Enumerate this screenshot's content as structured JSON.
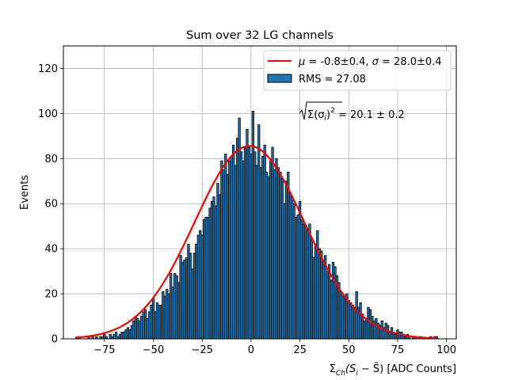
{
  "chart_data": {
    "type": "bar",
    "title": "Sum over 32 LG channels",
    "xlabel": "Σ_Ch(S_i − S̄) [ADC Counts]",
    "ylabel": "Events",
    "xlim": [
      -96,
      105
    ],
    "ylim": [
      0,
      130
    ],
    "x_ticks": [
      -75,
      -50,
      -25,
      0,
      25,
      50,
      75,
      100
    ],
    "y_ticks": [
      0,
      20,
      40,
      60,
      80,
      100,
      120
    ],
    "grid": true,
    "legend_position": "top-right",
    "histogram": {
      "name": "RMS = 27.08",
      "bin_width": 1.0,
      "x_start": -88.5,
      "bin_centers_range": [
        -88,
        95
      ],
      "values": [
        1,
        0,
        0,
        0,
        0,
        1,
        0,
        1,
        0,
        1,
        0,
        1,
        1,
        2,
        1,
        0,
        2,
        1,
        2,
        3,
        1,
        2,
        3,
        3,
        4,
        5,
        4,
        6,
        8,
        10,
        9,
        8,
        10,
        12,
        13,
        9,
        12,
        15,
        18,
        12,
        16,
        15,
        15,
        21,
        19,
        22,
        20,
        29,
        23,
        29,
        28,
        25,
        37,
        34,
        35,
        36,
        42,
        38,
        31,
        38,
        42,
        46,
        48,
        46,
        53,
        54,
        54,
        58,
        61,
        63,
        59,
        69,
        64,
        79,
        75,
        82,
        73,
        79,
        81,
        86,
        77,
        89,
        98,
        83,
        79,
        85,
        93,
        85,
        82,
        101,
        83,
        77,
        95,
        76,
        81,
        86,
        74,
        72,
        79,
        85,
        75,
        80,
        76,
        74,
        71,
        60,
        70,
        74,
        65,
        63,
        60,
        54,
        55,
        61,
        53,
        51,
        50,
        48,
        51,
        44,
        36,
        42,
        48,
        40,
        39,
        35,
        37,
        30,
        33,
        26,
        34,
        32,
        28,
        25,
        21,
        19,
        18,
        20,
        17,
        16,
        15,
        14,
        21,
        14,
        16,
        11,
        8,
        9,
        14,
        13,
        10,
        8,
        9,
        7,
        6,
        8,
        5,
        7,
        6,
        3,
        5,
        3,
        2,
        4,
        3,
        3,
        2,
        1,
        2,
        1,
        0,
        1,
        1,
        0,
        1,
        1,
        0,
        0,
        0,
        0,
        1,
        0,
        1,
        1
      ]
    },
    "fit": {
      "name": "μ = -0.8±0.4, σ = 28.0±0.4",
      "mu": -0.8,
      "sigma": 28.0,
      "amplitude": 85.6,
      "x_range": [
        -90,
        95
      ]
    },
    "annotation": "√Σ(σ_i)² = 20.1 ± 0.2"
  },
  "colors": {
    "bar_fill": "#1f77b4",
    "bar_edge": "#000000",
    "fit_line": "#ff0000",
    "grid": "#b0b0b0"
  },
  "text": {
    "title": "Sum over 32 LG channels",
    "ylabel": "Events",
    "legend_fit_mu": "μ",
    "legend_fit_rest_1": " = -0.8±0.4, ",
    "legend_fit_sigma": "σ",
    "legend_fit_rest_2": " = 28.0±0.4",
    "legend_hist": "RMS = 27.08",
    "annot_sum": "Σ(σ",
    "annot_i": "i",
    "annot_close": ")",
    "annot_sq": "2",
    "annot_value": " = 20.1 ± 0.2",
    "xlabel_sigma": "Σ",
    "xlabel_ch": "Ch",
    "xlabel_mid": "(S",
    "xlabel_i": "i",
    "xlabel_minus": " − S̄) [ADC Counts]"
  }
}
